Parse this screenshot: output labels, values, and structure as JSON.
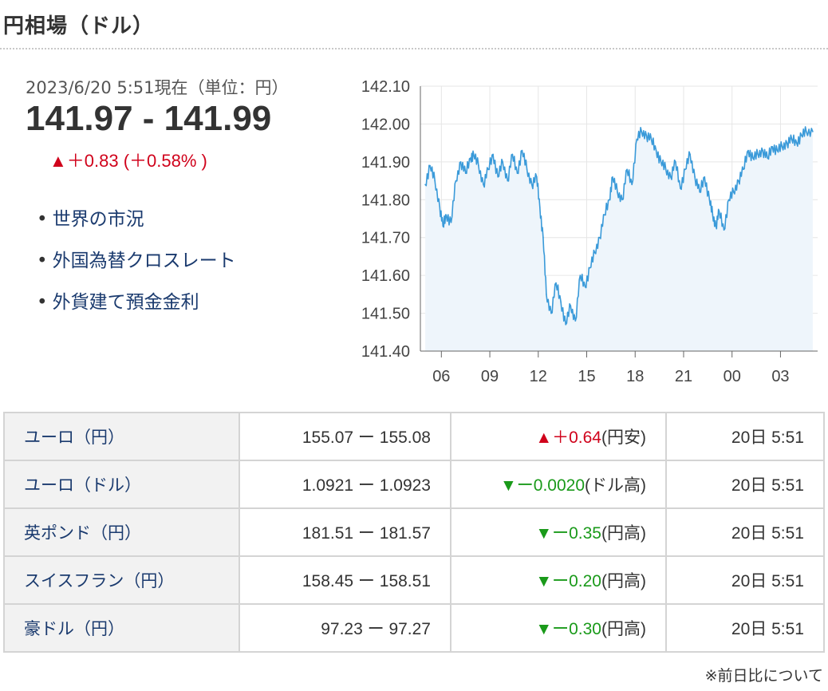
{
  "page": {
    "title": "円相場（ドル）"
  },
  "quote": {
    "asof": "2023/6/20 5:51現在（単位：円）",
    "range": "141.97 - 141.99",
    "change": "▲＋0.83 (＋0.58% )"
  },
  "links": [
    "世界の市況",
    "外国為替クロスレート",
    "外貨建て預金金利"
  ],
  "chart_data": {
    "type": "area",
    "title": "",
    "xlabel": "",
    "ylabel": "",
    "ylim": [
      141.4,
      142.1
    ],
    "yticks": [
      "142.10",
      "142.00",
      "141.90",
      "141.80",
      "141.70",
      "141.60",
      "141.50",
      "141.40"
    ],
    "xticks": [
      "06",
      "09",
      "12",
      "15",
      "18",
      "21",
      "00",
      "03"
    ],
    "grid": true,
    "color": "#3a9ad9",
    "fill": "#eef5fb",
    "x_hours": [
      5.0,
      5.3,
      5.6,
      5.9,
      6.1,
      6.3,
      6.6,
      6.9,
      7.2,
      7.5,
      7.8,
      8.0,
      8.3,
      8.6,
      8.9,
      9.2,
      9.5,
      9.8,
      10.1,
      10.4,
      10.7,
      11.0,
      11.3,
      11.6,
      11.9,
      12.1,
      12.3,
      12.5,
      12.8,
      13.1,
      13.4,
      13.7,
      14.0,
      14.3,
      14.6,
      14.9,
      15.2,
      15.5,
      15.8,
      16.1,
      16.4,
      16.6,
      16.9,
      17.2,
      17.5,
      17.8,
      18.1,
      18.4,
      18.7,
      19.0,
      19.3,
      19.6,
      19.9,
      20.2,
      20.5,
      20.8,
      21.1,
      21.4,
      21.7,
      22.0,
      22.3,
      22.6,
      22.8,
      23.0,
      23.2,
      23.5,
      23.8,
      24.1,
      24.4,
      24.7,
      25.0,
      25.3,
      25.6,
      25.9,
      26.2,
      26.5,
      26.8,
      27.1,
      27.4,
      27.7,
      28.0,
      28.3,
      28.6,
      29.0
    ],
    "values": [
      141.84,
      141.89,
      141.85,
      141.78,
      141.73,
      141.76,
      141.74,
      141.85,
      141.9,
      141.87,
      141.91,
      141.92,
      141.89,
      141.84,
      141.88,
      141.92,
      141.86,
      141.9,
      141.85,
      141.92,
      141.87,
      141.93,
      141.88,
      141.84,
      141.86,
      141.78,
      141.7,
      141.55,
      141.5,
      141.58,
      141.53,
      141.47,
      141.52,
      141.48,
      141.6,
      141.57,
      141.62,
      141.66,
      141.7,
      141.76,
      141.8,
      141.86,
      141.82,
      141.8,
      141.88,
      141.84,
      141.96,
      141.98,
      141.97,
      141.96,
      141.93,
      141.9,
      141.88,
      141.86,
      141.9,
      141.83,
      141.88,
      141.92,
      141.86,
      141.82,
      141.86,
      141.8,
      141.76,
      141.73,
      141.77,
      141.72,
      141.8,
      141.82,
      141.85,
      141.88,
      141.93,
      141.91,
      141.92,
      141.93,
      141.91,
      141.94,
      141.93,
      141.94,
      141.95,
      141.96,
      141.95,
      141.97,
      141.98,
      141.98
    ]
  },
  "table": {
    "rows": [
      {
        "name": "ユーロ（円）",
        "bidask": "155.07 ー 155.08",
        "direction": "up",
        "change": "▲＋0.64",
        "note": "(円安)",
        "time": "20日 5:51"
      },
      {
        "name": "ユーロ（ドル）",
        "bidask": "1.0921 ー 1.0923",
        "direction": "down",
        "change": "▼ー0.0020",
        "note": "(ドル高)",
        "time": "20日 5:51"
      },
      {
        "name": "英ポンド（円）",
        "bidask": "181.51 ー 181.57",
        "direction": "down",
        "change": "▼ー0.35",
        "note": "(円高)",
        "time": "20日 5:51"
      },
      {
        "name": "スイスフラン（円）",
        "bidask": "158.45 ー 158.51",
        "direction": "down",
        "change": "▼ー0.20",
        "note": "(円高)",
        "time": "20日 5:51"
      },
      {
        "name": "豪ドル（円）",
        "bidask": "97.23 ー 97.27",
        "direction": "down",
        "change": "▼ー0.30",
        "note": "(円高)",
        "time": "20日 5:51"
      }
    ]
  },
  "footnote": "※前日比について"
}
